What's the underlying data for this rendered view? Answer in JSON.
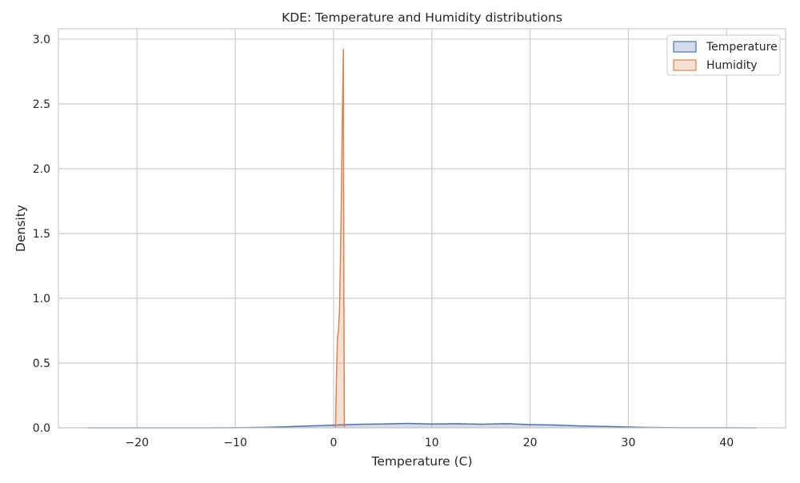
{
  "chart_data": {
    "type": "area",
    "title": "KDE: Temperature and Humidity distributions",
    "xlabel": "Temperature (C)",
    "ylabel": "Density",
    "xlim": [
      -28,
      46
    ],
    "ylim": [
      0,
      3.08
    ],
    "xticks": [
      -20,
      -10,
      0,
      10,
      20,
      30,
      40
    ],
    "xtick_labels": [
      "−20",
      "−10",
      "0",
      "10",
      "20",
      "30",
      "40"
    ],
    "yticks": [
      0,
      0.5,
      1.0,
      1.5,
      2.0,
      2.5,
      3.0
    ],
    "ytick_labels": [
      "0.0",
      "0.5",
      "1.0",
      "1.5",
      "2.0",
      "2.5",
      "3.0"
    ],
    "grid": true,
    "legend_position": "top-right",
    "series": [
      {
        "name": "Temperature",
        "color": "#4c72b0",
        "fill": "#4c72b0",
        "fill_opacity": 0.25,
        "x": [
          -25,
          -15,
          -10,
          -7,
          -5,
          -3,
          -1,
          0,
          1,
          3,
          5,
          7.5,
          10,
          12.5,
          15,
          17.5,
          20,
          22.5,
          25,
          27.5,
          30,
          32,
          35,
          38,
          43
        ],
        "y": [
          0,
          0,
          0.001,
          0.004,
          0.008,
          0.013,
          0.018,
          0.021,
          0.024,
          0.028,
          0.029,
          0.034,
          0.029,
          0.032,
          0.028,
          0.032,
          0.025,
          0.022,
          0.015,
          0.011,
          0.006,
          0.003,
          0.001,
          0.0005,
          0
        ]
      },
      {
        "name": "Humidity",
        "color": "#dd8452",
        "fill": "#dd8452",
        "fill_opacity": 0.25,
        "x": [
          0.2,
          0.3,
          0.4,
          0.5,
          0.6,
          0.7,
          0.8,
          0.9,
          1.0,
          1.05,
          1.1
        ],
        "y": [
          0,
          0.4,
          0.7,
          0.75,
          0.9,
          1.3,
          1.8,
          2.45,
          2.92,
          1.0,
          0
        ]
      }
    ]
  }
}
